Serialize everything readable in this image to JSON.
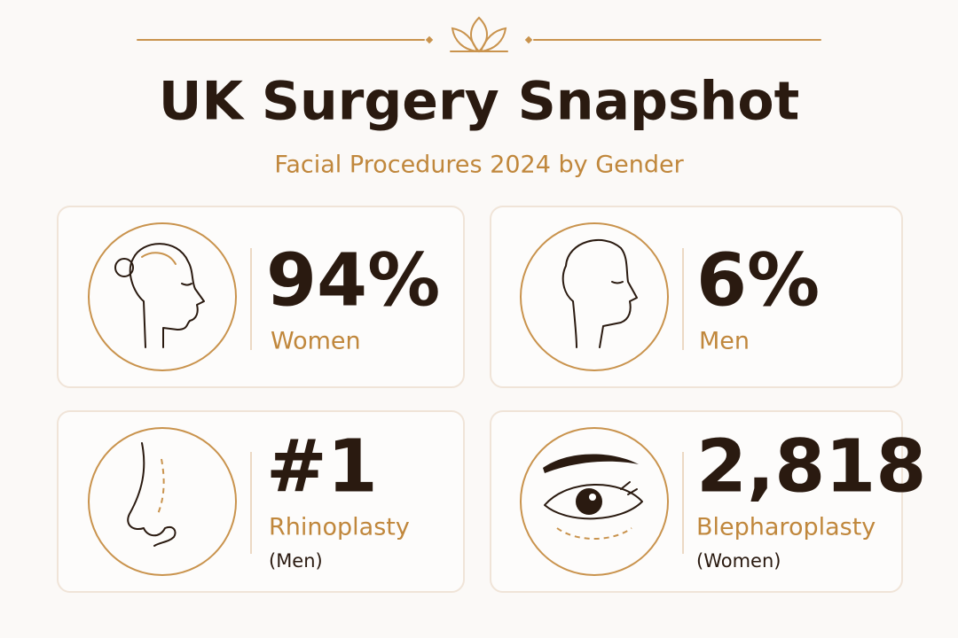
{
  "header": {
    "title": "UK Surgery Snapshot",
    "subtitle": "Facial Procedures 2024 by Gender"
  },
  "cards": [
    {
      "stat": "94%",
      "label": "Women"
    },
    {
      "stat": "6%",
      "label": "Men"
    },
    {
      "stat": "#1",
      "label": "Rhinoplasty",
      "note": "(Men)"
    },
    {
      "stat": "2,818",
      "label": "Blepharoplasty",
      "note": "(Women)"
    }
  ]
}
